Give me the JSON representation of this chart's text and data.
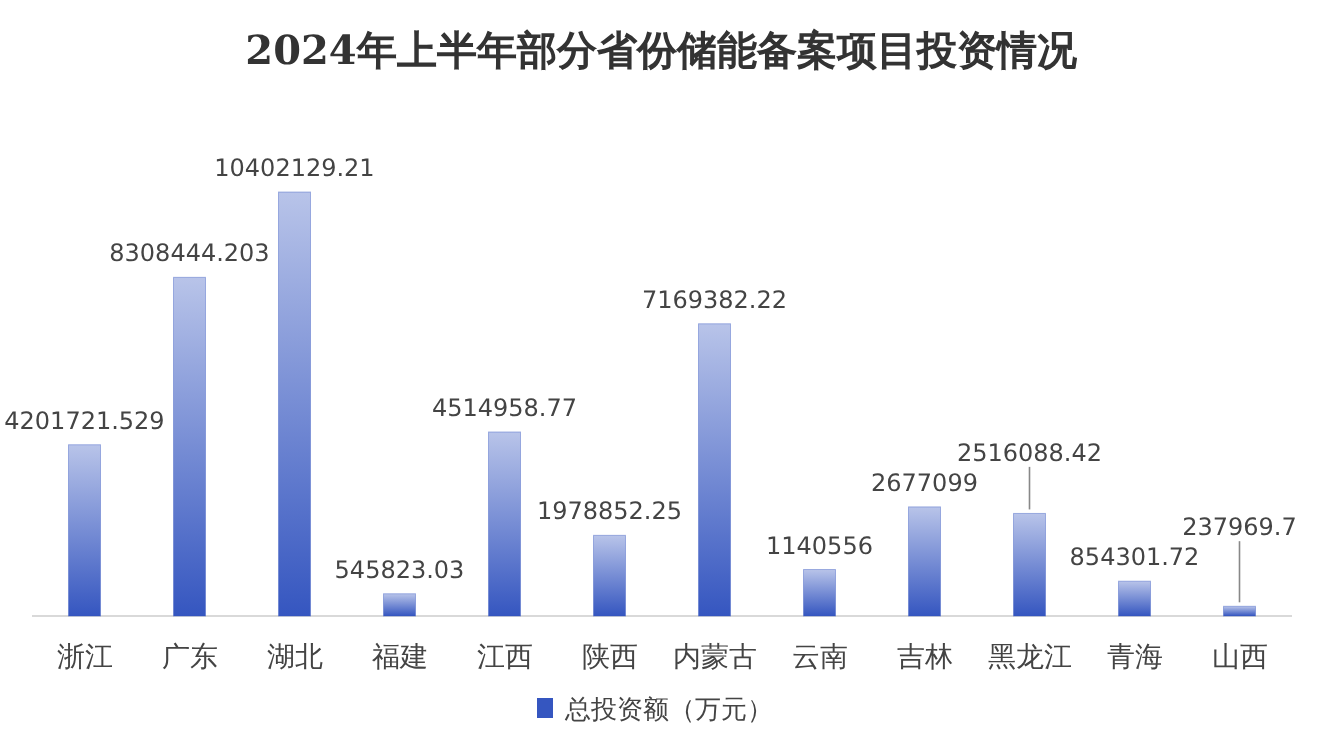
{
  "chart_data": {
    "type": "bar",
    "title": "2024年上半年部分省份储能备案项目投资情况",
    "categories": [
      "浙江",
      "广东",
      "湖北",
      "福建",
      "江西",
      "陕西",
      "内蒙古",
      "云南",
      "吉林",
      "黑龙江",
      "青海",
      "山西"
    ],
    "series": [
      {
        "name": "总投资额（万元）",
        "color": "#3556c0",
        "values": [
          4201721.529,
          8308444.203,
          10402129.21,
          545823.03,
          4514958.77,
          1978852.25,
          7169382.22,
          1140556,
          2677099,
          2516088.42,
          854301.72,
          237969.7
        ]
      }
    ],
    "data_labels": true,
    "legend": "bottom"
  }
}
